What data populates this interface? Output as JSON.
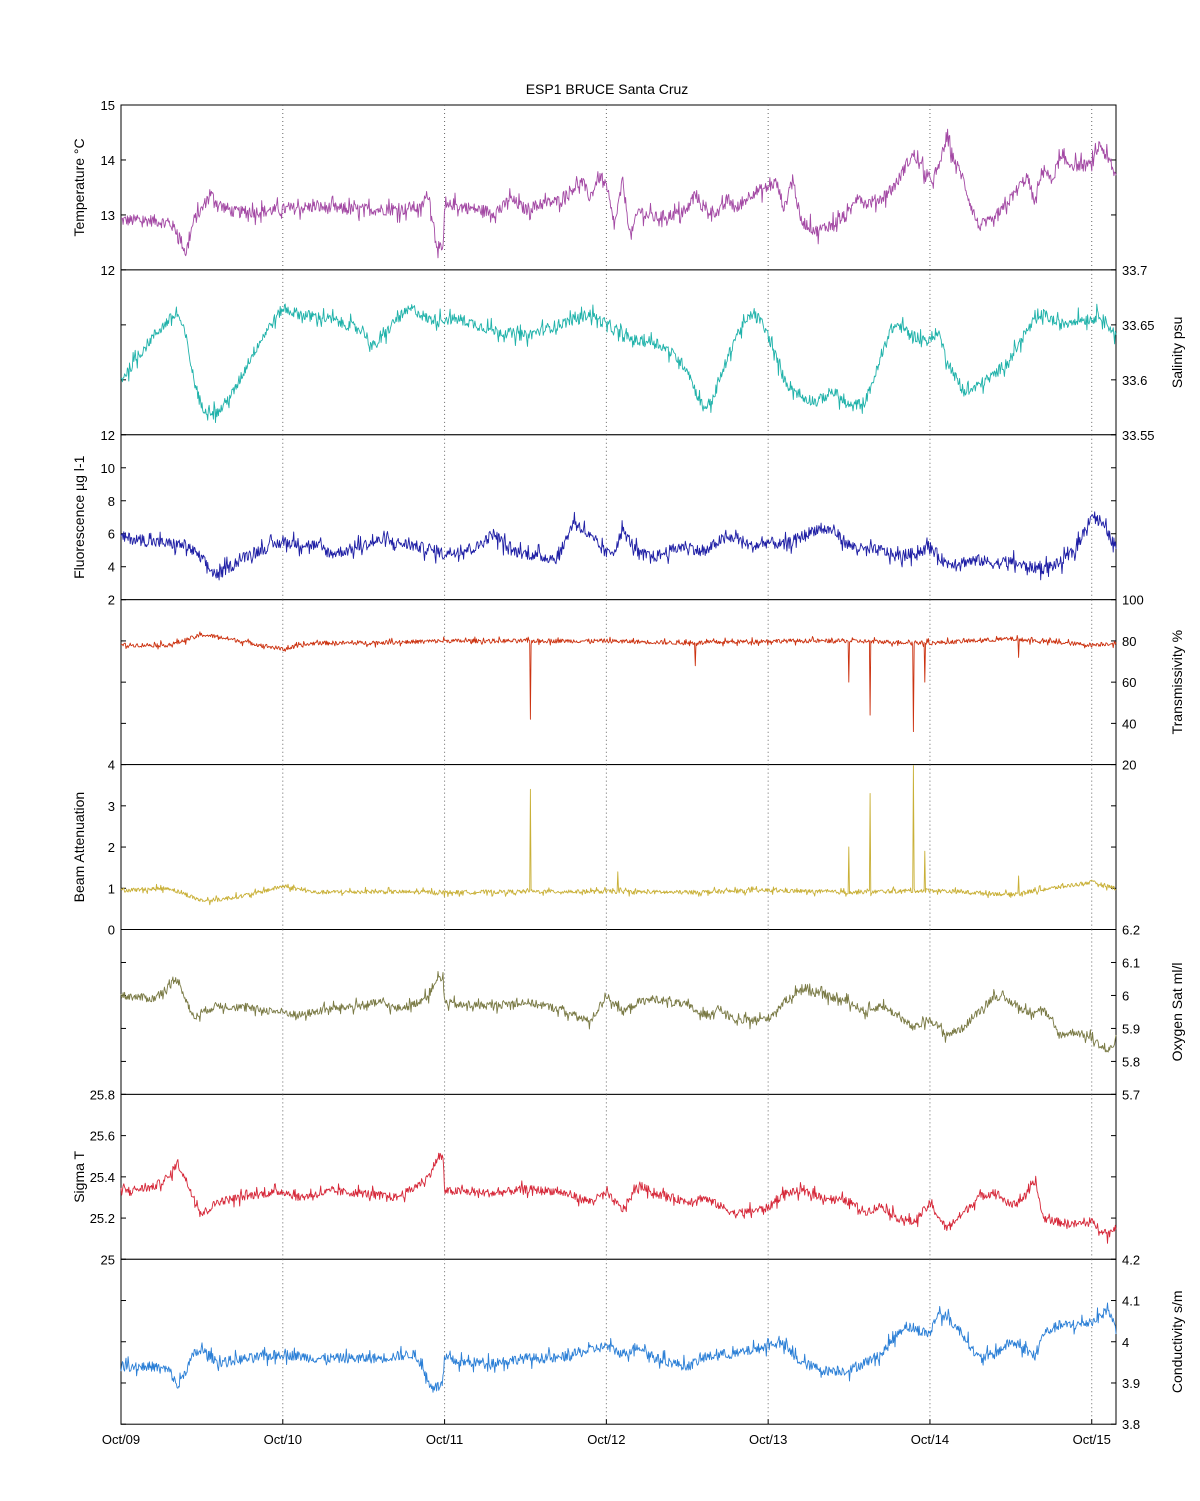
{
  "title": "ESP1 BRUCE Santa Cruz",
  "x_axis": {
    "tick_labels": [
      "Oct/09",
      "Oct/10",
      "Oct/11",
      "Oct/12",
      "Oct/13",
      "Oct/14",
      "Oct/15"
    ],
    "range_days": [
      0,
      6.15
    ],
    "grid": "vertical dotted at each day"
  },
  "chart_data": [
    {
      "type": "line",
      "name": "temperature",
      "ylabel": "Temperature °C",
      "axis_side": "left",
      "ylim": [
        12,
        15
      ],
      "ticks": [
        12,
        13,
        14,
        15
      ],
      "tick_labels": [
        "12",
        "13",
        "14",
        "15"
      ],
      "color": "#a349a4",
      "x_days": [
        0,
        0.2,
        0.3,
        0.35,
        0.4,
        0.45,
        0.5,
        0.55,
        0.6,
        0.7,
        0.8,
        1.0,
        1.2,
        1.4,
        1.5,
        1.65,
        1.75,
        1.8,
        1.85,
        1.9,
        1.95,
        1.99,
        2.0,
        2.05,
        2.1,
        2.2,
        2.3,
        2.35,
        2.4,
        2.5,
        2.6,
        2.7,
        2.8,
        2.85,
        2.9,
        2.95,
        3.0,
        3.05,
        3.1,
        3.15,
        3.2,
        3.25,
        3.3,
        3.4,
        3.5,
        3.5,
        3.55,
        3.6,
        3.7,
        3.75,
        3.8,
        3.9,
        4.0,
        4.05,
        4.1,
        4.15,
        4.2,
        4.3,
        4.4,
        4.5,
        4.55,
        4.6,
        4.7,
        4.8,
        4.85,
        4.9,
        5.0,
        5.05,
        5.1,
        5.15,
        5.2,
        5.25,
        5.3,
        5.4,
        5.5,
        5.6,
        5.65,
        5.7,
        5.75,
        5.8,
        5.9,
        6.0,
        6.05,
        6.1,
        6.15
      ],
      "values": [
        12.9,
        12.9,
        12.85,
        12.7,
        12.3,
        12.9,
        13.1,
        13.4,
        13.2,
        13.05,
        13.05,
        13.1,
        13.15,
        13.1,
        13.1,
        13.1,
        13.1,
        13.15,
        13.1,
        13.4,
        12.5,
        12.3,
        13.1,
        13.2,
        13.15,
        13.1,
        13.05,
        13.1,
        13.3,
        13.1,
        13.2,
        13.25,
        13.5,
        13.6,
        13.3,
        13.7,
        13.5,
        12.8,
        13.6,
        12.6,
        13.1,
        13.0,
        12.95,
        13.0,
        13.05,
        13.1,
        13.4,
        13.1,
        13.05,
        13.3,
        13.1,
        13.4,
        13.5,
        13.6,
        13.1,
        13.7,
        12.9,
        12.7,
        12.85,
        13.0,
        13.4,
        13.2,
        13.3,
        13.6,
        13.9,
        14.1,
        13.6,
        13.8,
        14.4,
        14.0,
        13.7,
        13.2,
        12.8,
        12.9,
        13.3,
        13.7,
        13.2,
        13.9,
        13.6,
        14.0,
        13.9,
        13.9,
        14.3,
        14.0,
        13.7
      ],
      "noise": 0.11
    },
    {
      "type": "line",
      "name": "salinity",
      "ylabel": "Salinity psu",
      "axis_side": "right",
      "ylim": [
        33.55,
        33.7
      ],
      "ticks": [
        33.55,
        33.6,
        33.65,
        33.7
      ],
      "tick_labels": [
        "33.55",
        "33.6",
        "33.65",
        "33.7"
      ],
      "color": "#20b2aa",
      "x_days": [
        0,
        0.1,
        0.2,
        0.3,
        0.35,
        0.4,
        0.45,
        0.5,
        0.6,
        0.7,
        0.8,
        0.9,
        1.0,
        1.1,
        1.3,
        1.5,
        1.55,
        1.6,
        1.7,
        1.75,
        1.8,
        1.9,
        2.0,
        2.1,
        2.3,
        2.5,
        2.7,
        2.9,
        3.0,
        3.1,
        3.2,
        3.3,
        3.4,
        3.5,
        3.55,
        3.6,
        3.65,
        3.7,
        3.8,
        3.9,
        3.95,
        4.0,
        4.1,
        4.2,
        4.3,
        4.4,
        4.5,
        4.6,
        4.7,
        4.75,
        4.8,
        4.9,
        5.0,
        5.05,
        5.1,
        5.2,
        5.25,
        5.3,
        5.4,
        5.5,
        5.6,
        5.7,
        5.8,
        5.9,
        6.0,
        6.05,
        6.1,
        6.15
      ],
      "values": [
        33.6,
        33.62,
        33.64,
        33.655,
        33.66,
        33.64,
        33.6,
        33.575,
        33.57,
        33.59,
        33.62,
        33.645,
        33.665,
        33.66,
        33.655,
        33.645,
        33.63,
        33.635,
        33.655,
        33.66,
        33.665,
        33.655,
        33.655,
        33.655,
        33.645,
        33.64,
        33.65,
        33.66,
        33.65,
        33.64,
        33.635,
        33.635,
        33.625,
        33.61,
        33.59,
        33.575,
        33.58,
        33.6,
        33.64,
        33.66,
        33.655,
        33.64,
        33.6,
        33.585,
        33.58,
        33.59,
        33.575,
        33.58,
        33.62,
        33.645,
        33.65,
        33.64,
        33.635,
        33.645,
        33.62,
        33.59,
        33.59,
        33.595,
        33.605,
        33.62,
        33.645,
        33.66,
        33.65,
        33.655,
        33.655,
        33.66,
        33.65,
        33.64
      ],
      "noise": 0.005
    },
    {
      "type": "line",
      "name": "fluorescence",
      "ylabel": "Fluorescence µg l-1",
      "axis_side": "left",
      "ylim": [
        2,
        12
      ],
      "ticks": [
        2,
        4,
        6,
        8,
        10,
        12
      ],
      "tick_labels": [
        "2",
        "4",
        "6",
        "8",
        "10",
        "12"
      ],
      "color": "#1f1fa5",
      "x_days": [
        0,
        0.2,
        0.4,
        0.5,
        0.55,
        0.6,
        0.7,
        0.8,
        1.0,
        1.2,
        1.3,
        1.4,
        1.6,
        1.8,
        2.0,
        2.2,
        2.3,
        2.35,
        2.4,
        2.5,
        2.6,
        2.7,
        2.8,
        2.9,
        3.0,
        3.05,
        3.1,
        3.2,
        3.3,
        3.4,
        3.5,
        3.6,
        3.7,
        3.8,
        3.9,
        4.0,
        4.1,
        4.2,
        4.3,
        4.4,
        4.5,
        4.6,
        4.7,
        4.8,
        4.9,
        5.0,
        5.1,
        5.2,
        5.3,
        5.4,
        5.5,
        5.6,
        5.7,
        5.8,
        5.9,
        6.0,
        6.05,
        6.1,
        6.15
      ],
      "values": [
        5.8,
        5.5,
        5.3,
        4.5,
        3.8,
        3.5,
        4.2,
        4.8,
        5.5,
        5.3,
        4.8,
        5.0,
        5.6,
        5.3,
        4.8,
        5.2,
        6.0,
        5.6,
        5.0,
        4.8,
        4.6,
        4.5,
        6.8,
        5.8,
        4.8,
        5.0,
        6.2,
        4.8,
        4.6,
        5.0,
        5.3,
        4.8,
        5.6,
        5.8,
        5.2,
        5.5,
        5.3,
        5.8,
        6.3,
        6.2,
        5.3,
        5.0,
        5.0,
        4.6,
        4.8,
        5.2,
        4.2,
        4.3,
        4.4,
        4.2,
        4.3,
        4.0,
        3.9,
        4.2,
        5.0,
        7.2,
        6.8,
        6.0,
        5.2
      ],
      "noise": 0.35
    },
    {
      "type": "line",
      "name": "transmissivity",
      "ylabel": "Transmissivity %",
      "axis_side": "right",
      "ylim": [
        20,
        100
      ],
      "ticks": [
        20,
        40,
        60,
        80,
        100
      ],
      "tick_labels": [
        "20",
        "40",
        "60",
        "80",
        "100"
      ],
      "color": "#cc3311",
      "x_days": [
        0,
        0.3,
        0.5,
        0.6,
        0.8,
        1.0,
        1.2,
        1.5,
        2.0,
        2.5,
        3.0,
        3.5,
        4.0,
        4.5,
        5.0,
        5.5,
        6.0,
        6.15
      ],
      "values": [
        78,
        78,
        83,
        82,
        79,
        76,
        79,
        79,
        80,
        80,
        80,
        79,
        80,
        80,
        79,
        81,
        78,
        79
      ],
      "noise": 1.0,
      "spikes": [
        {
          "x": 2.53,
          "v": 42
        },
        {
          "x": 3.55,
          "v": 68
        },
        {
          "x": 4.5,
          "v": 60
        },
        {
          "x": 4.63,
          "v": 44
        },
        {
          "x": 4.9,
          "v": 36
        },
        {
          "x": 4.97,
          "v": 60
        },
        {
          "x": 5.55,
          "v": 72
        }
      ]
    },
    {
      "type": "line",
      "name": "beam_attenuation",
      "ylabel": "Beam Attenuation",
      "axis_side": "left",
      "ylim": [
        0,
        4
      ],
      "ticks": [
        0,
        1,
        2,
        3,
        4
      ],
      "tick_labels": [
        "0",
        "1",
        "2",
        "3",
        "4"
      ],
      "color": "#c9b037",
      "x_days": [
        0,
        0.3,
        0.5,
        0.6,
        0.8,
        1.0,
        1.2,
        1.5,
        2.0,
        2.5,
        3.0,
        3.5,
        4.0,
        4.5,
        5.0,
        5.5,
        6.0,
        6.15
      ],
      "values": [
        0.95,
        1.0,
        0.7,
        0.72,
        0.85,
        1.05,
        0.9,
        0.92,
        0.9,
        0.92,
        0.92,
        0.9,
        0.95,
        0.9,
        0.95,
        0.85,
        1.15,
        1.0
      ],
      "noise": 0.05,
      "spikes": [
        {
          "x": 2.53,
          "v": 3.4
        },
        {
          "x": 3.07,
          "v": 1.4
        },
        {
          "x": 4.5,
          "v": 2.0
        },
        {
          "x": 4.63,
          "v": 3.3
        },
        {
          "x": 4.9,
          "v": 4.0
        },
        {
          "x": 4.97,
          "v": 1.9
        },
        {
          "x": 5.55,
          "v": 1.3
        }
      ]
    },
    {
      "type": "line",
      "name": "oxygen_sat",
      "ylabel": "Oxygen Sat ml/l",
      "axis_side": "right",
      "ylim": [
        5.7,
        6.2
      ],
      "ticks": [
        5.7,
        5.8,
        5.9,
        6,
        6.1,
        6.2
      ],
      "tick_labels": [
        "5.7",
        "5.8",
        "5.9",
        "6",
        "6.1",
        "6.2"
      ],
      "color": "#7a7a45",
      "x_days": [
        0,
        0.2,
        0.3,
        0.35,
        0.45,
        0.5,
        0.6,
        0.8,
        1.0,
        1.1,
        1.3,
        1.5,
        1.6,
        1.7,
        1.8,
        1.9,
        1.95,
        1.99,
        2.0,
        2.1,
        2.3,
        2.5,
        2.7,
        2.9,
        3.0,
        3.1,
        3.2,
        3.3,
        3.5,
        3.6,
        3.7,
        3.8,
        4.0,
        4.1,
        4.2,
        4.35,
        4.5,
        4.6,
        4.7,
        4.8,
        4.9,
        5.0,
        5.1,
        5.2,
        5.3,
        5.4,
        5.5,
        5.6,
        5.7,
        5.8,
        5.9,
        6.0,
        6.1,
        6.15
      ],
      "values": [
        6.0,
        5.99,
        6.03,
        6.05,
        5.93,
        5.95,
        5.97,
        5.96,
        5.95,
        5.94,
        5.96,
        5.97,
        5.98,
        5.96,
        5.97,
        6.0,
        6.05,
        6.05,
        5.98,
        5.97,
        5.97,
        5.98,
        5.96,
        5.92,
        6.0,
        5.95,
        5.98,
        5.99,
        5.97,
        5.94,
        5.96,
        5.92,
        5.93,
        5.98,
        6.02,
        6.0,
        5.98,
        5.95,
        5.97,
        5.94,
        5.9,
        5.93,
        5.88,
        5.9,
        5.95,
        6.0,
        5.98,
        5.95,
        5.96,
        5.88,
        5.89,
        5.87,
        5.83,
        5.86
      ],
      "noise": 0.012
    },
    {
      "type": "line",
      "name": "sigma_t",
      "ylabel": "Sigma T",
      "axis_side": "left",
      "ylim": [
        25,
        25.8
      ],
      "ticks": [
        25,
        25.2,
        25.4,
        25.6,
        25.8
      ],
      "tick_labels": [
        "25",
        "25.2",
        "25.4",
        "25.6",
        "25.8"
      ],
      "color": "#d62839",
      "x_days": [
        0,
        0.2,
        0.3,
        0.35,
        0.45,
        0.5,
        0.6,
        0.8,
        1.0,
        1.1,
        1.3,
        1.5,
        1.7,
        1.8,
        1.9,
        1.95,
        1.99,
        2.0,
        2.1,
        2.3,
        2.5,
        2.7,
        2.9,
        3.0,
        3.1,
        3.2,
        3.3,
        3.5,
        3.6,
        3.7,
        3.8,
        4.0,
        4.1,
        4.2,
        4.35,
        4.5,
        4.6,
        4.7,
        4.8,
        4.9,
        5.0,
        5.1,
        5.2,
        5.3,
        5.4,
        5.5,
        5.6,
        5.65,
        5.7,
        5.8,
        5.9,
        6.0,
        6.1,
        6.15
      ],
      "values": [
        25.33,
        25.35,
        25.4,
        25.47,
        25.3,
        25.22,
        25.28,
        25.31,
        25.33,
        25.3,
        25.33,
        25.32,
        25.3,
        25.34,
        25.4,
        25.48,
        25.5,
        25.33,
        25.33,
        25.32,
        25.34,
        25.33,
        25.28,
        25.32,
        25.24,
        25.36,
        25.32,
        25.28,
        25.3,
        25.26,
        25.22,
        25.25,
        25.32,
        25.33,
        25.3,
        25.28,
        25.23,
        25.26,
        25.2,
        25.18,
        25.27,
        25.15,
        25.22,
        25.3,
        25.33,
        25.26,
        25.31,
        25.38,
        25.2,
        25.18,
        25.17,
        25.18,
        25.12,
        25.16
      ],
      "noise": 0.02
    },
    {
      "type": "line",
      "name": "conductivity",
      "ylabel": "Conductivity s/m",
      "axis_side": "right",
      "ylim": [
        3.8,
        4.2
      ],
      "ticks": [
        3.8,
        3.9,
        4,
        4.1,
        4.2
      ],
      "tick_labels": [
        "3.8",
        "3.9",
        "4",
        "4.1",
        "4.2"
      ],
      "color": "#2b7fd6",
      "x_days": [
        0,
        0.2,
        0.3,
        0.35,
        0.45,
        0.5,
        0.6,
        0.8,
        1.0,
        1.2,
        1.4,
        1.6,
        1.8,
        1.85,
        1.9,
        1.95,
        1.99,
        2.0,
        2.1,
        2.3,
        2.5,
        2.7,
        2.9,
        3.0,
        3.1,
        3.2,
        3.3,
        3.5,
        3.6,
        3.7,
        3.8,
        4.0,
        4.05,
        4.1,
        4.2,
        4.35,
        4.5,
        4.6,
        4.7,
        4.8,
        4.85,
        4.9,
        5.0,
        5.05,
        5.1,
        5.2,
        5.3,
        5.4,
        5.5,
        5.6,
        5.65,
        5.7,
        5.8,
        5.9,
        6.0,
        6.05,
        6.1,
        6.15
      ],
      "values": [
        3.94,
        3.94,
        3.93,
        3.89,
        3.97,
        3.98,
        3.95,
        3.96,
        3.97,
        3.96,
        3.96,
        3.96,
        3.97,
        3.95,
        3.9,
        3.89,
        3.9,
        3.96,
        3.95,
        3.95,
        3.96,
        3.96,
        3.98,
        3.99,
        3.97,
        3.99,
        3.96,
        3.94,
        3.96,
        3.97,
        3.97,
        3.99,
        4.0,
        3.99,
        3.95,
        3.93,
        3.93,
        3.95,
        3.97,
        4.02,
        4.04,
        4.03,
        4.02,
        4.07,
        4.06,
        4.02,
        3.96,
        3.97,
        4.0,
        3.98,
        3.96,
        4.02,
        4.04,
        4.04,
        4.05,
        4.06,
        4.08,
        4.03
      ],
      "noise": 0.012
    }
  ]
}
